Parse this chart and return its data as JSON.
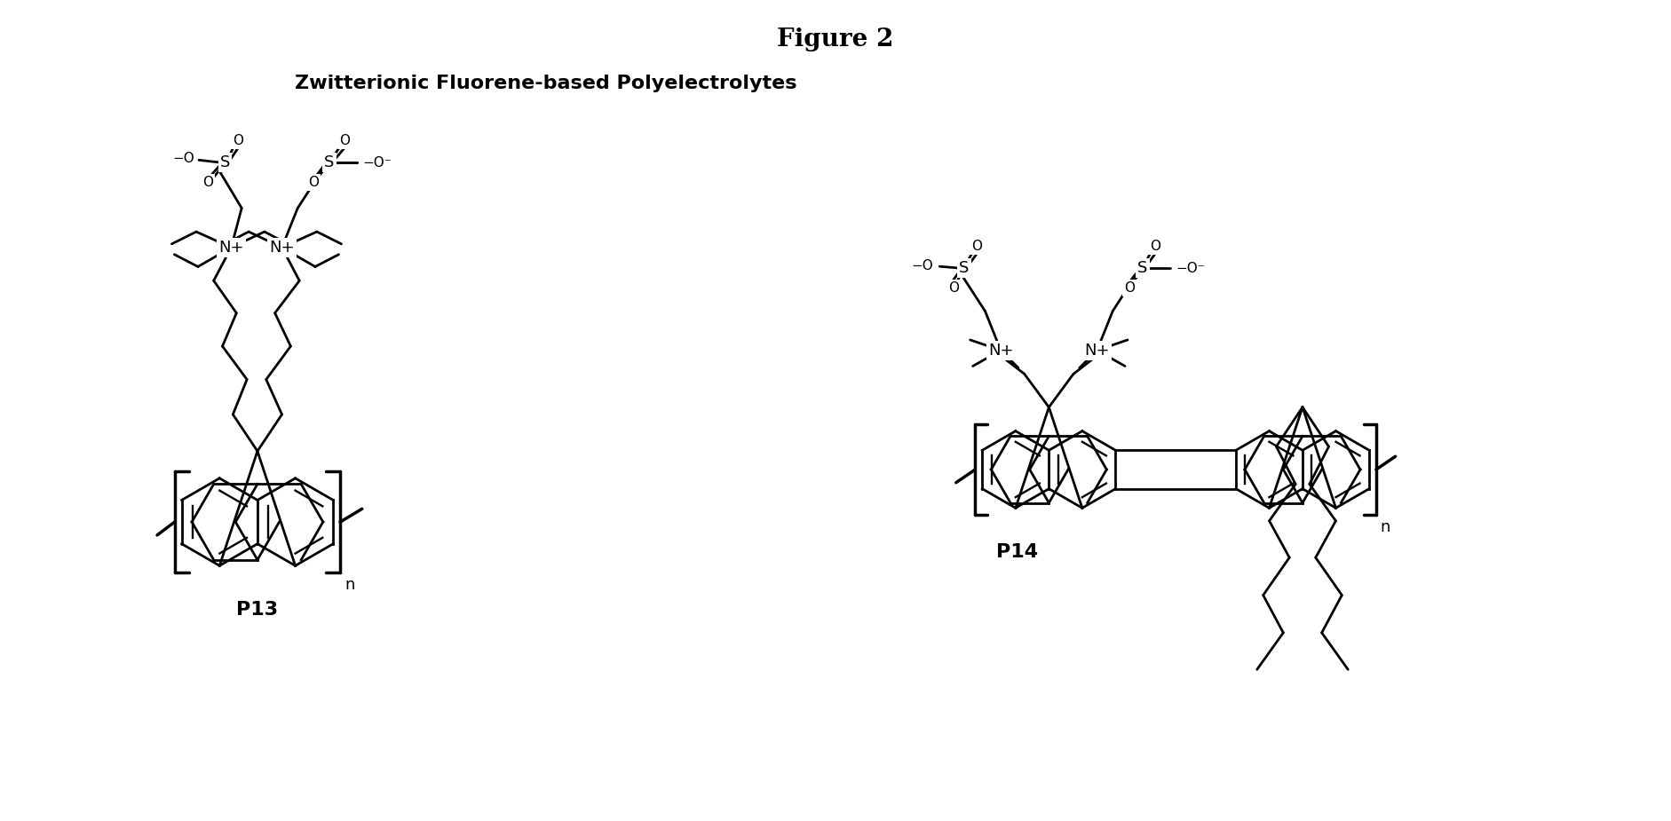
{
  "title": "Figure 2",
  "subtitle": "Zwitterionic Fluorene-based Polyelectrolytes",
  "label_p13": "P13",
  "label_p14": "P14",
  "bg_color": "#ffffff",
  "fig_width": 18.83,
  "fig_height": 9.25,
  "dpi": 100
}
